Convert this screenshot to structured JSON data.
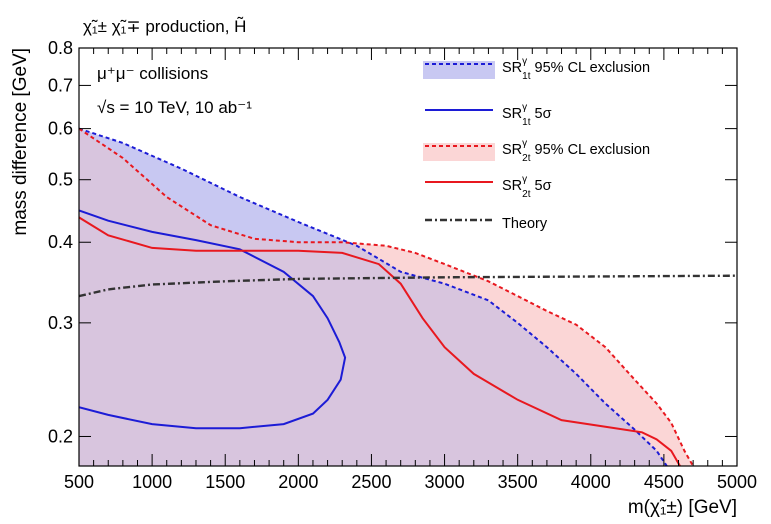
{
  "chart_data": {
    "type": "area",
    "title": "χ̃₁± χ̃₁∓ production, H̃",
    "annotations": [
      "μ⁺μ⁻ collisions",
      "√s = 10 TeV, 10 ab⁻¹"
    ],
    "xlabel": "m(χ̃₁±) [GeV]",
    "ylabel": "mass difference [GeV]",
    "xlim": [
      500,
      5000
    ],
    "ylim": [
      0.18,
      0.8
    ],
    "y_scale": "log",
    "x_ticks": [
      "500",
      "1000",
      "1500",
      "2000",
      "2500",
      "3000",
      "3500",
      "4000",
      "4500",
      "5000"
    ],
    "x_tick_values": [
      500,
      1000,
      1500,
      2000,
      2500,
      3000,
      3500,
      4000,
      4500,
      5000
    ],
    "y_ticks": [
      "0.2",
      "0.3",
      "0.4",
      "0.5",
      "0.6",
      "0.7",
      "0.8"
    ],
    "y_tick_values": [
      0.2,
      0.3,
      0.4,
      0.5,
      0.6,
      0.7,
      0.8
    ],
    "grid": false,
    "legend_position": "top-right",
    "series": [
      {
        "name": "SR1tγ 95% CL exclusion",
        "legend_main": "SR",
        "legend_sup": "γ",
        "legend_sub": "1t",
        "legend_tail": " 95% CL exclusion",
        "style": "dashed",
        "color": "#1c1cd6",
        "fill": "#c8c8f2",
        "points": [
          [
            500,
            0.6
          ],
          [
            800,
            0.57
          ],
          [
            1200,
            0.52
          ],
          [
            1600,
            0.47
          ],
          [
            2000,
            0.43
          ],
          [
            2400,
            0.395
          ],
          [
            2700,
            0.36
          ],
          [
            3000,
            0.345
          ],
          [
            3300,
            0.325
          ],
          [
            3500,
            0.3
          ],
          [
            3700,
            0.275
          ],
          [
            3900,
            0.25
          ],
          [
            4100,
            0.225
          ],
          [
            4300,
            0.205
          ],
          [
            4450,
            0.19
          ],
          [
            4520,
            0.18
          ]
        ]
      },
      {
        "name": "SR1tγ 5σ",
        "legend_main": "SR",
        "legend_sup": "γ",
        "legend_sub": "1t",
        "legend_tail": " 5σ",
        "style": "solid",
        "color": "#1c1cd6",
        "fill": null,
        "points": [
          [
            500,
            0.448
          ],
          [
            700,
            0.432
          ],
          [
            1000,
            0.415
          ],
          [
            1300,
            0.403
          ],
          [
            1600,
            0.39
          ],
          [
            1900,
            0.36
          ],
          [
            2100,
            0.33
          ],
          [
            2200,
            0.305
          ],
          [
            2280,
            0.28
          ],
          [
            2320,
            0.265
          ],
          [
            2290,
            0.245
          ],
          [
            2200,
            0.228
          ],
          [
            2100,
            0.217
          ],
          [
            1900,
            0.209
          ],
          [
            1600,
            0.206
          ],
          [
            1300,
            0.206
          ],
          [
            1000,
            0.209
          ],
          [
            700,
            0.216
          ],
          [
            500,
            0.222
          ]
        ]
      },
      {
        "name": "SR2tγ 95% CL exclusion",
        "legend_main": "SR",
        "legend_sup": "γ",
        "legend_sub": "2t",
        "legend_tail": " 95% CL exclusion",
        "style": "dashed",
        "color": "#e8181f",
        "fill": "#fbd6d6",
        "points": [
          [
            500,
            0.6
          ],
          [
            800,
            0.54
          ],
          [
            1100,
            0.47
          ],
          [
            1400,
            0.425
          ],
          [
            1700,
            0.405
          ],
          [
            2000,
            0.4
          ],
          [
            2300,
            0.4
          ],
          [
            2600,
            0.395
          ],
          [
            2800,
            0.385
          ],
          [
            3000,
            0.37
          ],
          [
            3300,
            0.348
          ],
          [
            3500,
            0.33
          ],
          [
            3700,
            0.313
          ],
          [
            3900,
            0.298
          ],
          [
            4100,
            0.275
          ],
          [
            4300,
            0.245
          ],
          [
            4450,
            0.225
          ],
          [
            4550,
            0.21
          ],
          [
            4640,
            0.19
          ],
          [
            4700,
            0.18
          ]
        ]
      },
      {
        "name": "SR2tγ 5σ",
        "legend_main": "SR",
        "legend_sup": "γ",
        "legend_sub": "2t",
        "legend_tail": " 5σ",
        "style": "solid",
        "color": "#e8181f",
        "fill": null,
        "points": [
          [
            500,
            0.437
          ],
          [
            700,
            0.41
          ],
          [
            1000,
            0.392
          ],
          [
            1300,
            0.388
          ],
          [
            1700,
            0.388
          ],
          [
            2000,
            0.388
          ],
          [
            2300,
            0.385
          ],
          [
            2550,
            0.37
          ],
          [
            2700,
            0.345
          ],
          [
            2850,
            0.305
          ],
          [
            3000,
            0.275
          ],
          [
            3200,
            0.25
          ],
          [
            3500,
            0.228
          ],
          [
            3800,
            0.212
          ],
          [
            4100,
            0.207
          ],
          [
            4350,
            0.203
          ],
          [
            4450,
            0.198
          ],
          [
            4550,
            0.19
          ],
          [
            4610,
            0.18
          ]
        ]
      },
      {
        "name": "Theory",
        "legend_main": "Theory",
        "legend_sup": "",
        "legend_sub": "",
        "legend_tail": "",
        "style": "dashdot",
        "color": "#333333",
        "fill": null,
        "points": [
          [
            500,
            0.33
          ],
          [
            700,
            0.338
          ],
          [
            1000,
            0.344
          ],
          [
            1500,
            0.348
          ],
          [
            2000,
            0.351
          ],
          [
            3000,
            0.353
          ],
          [
            4000,
            0.354
          ],
          [
            5000,
            0.355
          ]
        ]
      }
    ]
  },
  "overlap_fill": "#d8c5de"
}
